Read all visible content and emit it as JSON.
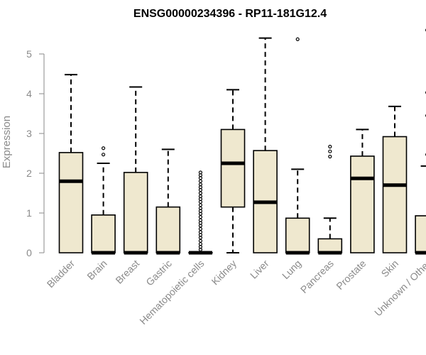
{
  "chart_data": {
    "type": "boxplot",
    "title": "ENSG00000234396 - RP11-181G12.4",
    "ylabel": "Expression",
    "xlabel": "",
    "ylim": [
      0,
      5.7
    ],
    "yticks": [
      0,
      1,
      2,
      3,
      4,
      5
    ],
    "box_fill": "#efe8cf",
    "box_stroke": "#000000",
    "categories": [
      "Bladder",
      "Brain",
      "Breast",
      "Gastric",
      "Hematopoietic cells",
      "Kidney",
      "Liver",
      "Lung",
      "Pancreas",
      "Prostate",
      "Skin",
      "Unknown / Other"
    ],
    "boxes": [
      {
        "min": 0,
        "q1": 0,
        "median": 1.8,
        "q3": 2.52,
        "max": 4.48,
        "outliers": []
      },
      {
        "min": 0,
        "q1": 0,
        "median": 0,
        "q3": 0.95,
        "max": 2.25,
        "outliers": [
          2.47,
          2.63
        ]
      },
      {
        "min": 0,
        "q1": 0,
        "median": 0,
        "q3": 2.02,
        "max": 4.17,
        "outliers": []
      },
      {
        "min": 0,
        "q1": 0,
        "median": 0,
        "q3": 1.15,
        "max": 2.6,
        "outliers": []
      },
      {
        "min": 0,
        "q1": 0,
        "median": 0,
        "q3": 0,
        "max": 0,
        "outliers": [
          0.08,
          0.15,
          0.22,
          0.3,
          0.38,
          0.45,
          0.52,
          0.6,
          0.68,
          0.75,
          0.82,
          0.9,
          0.98,
          1.05,
          1.12,
          1.2,
          1.28,
          1.35,
          1.42,
          1.5,
          1.58,
          1.65,
          1.72,
          1.8,
          1.88,
          1.95,
          2.02
        ]
      },
      {
        "min": 0,
        "q1": 1.15,
        "median": 2.25,
        "q3": 3.1,
        "max": 4.1,
        "outliers": []
      },
      {
        "min": 0,
        "q1": 0,
        "median": 1.27,
        "q3": 2.57,
        "max": 5.4,
        "outliers": []
      },
      {
        "min": 0,
        "q1": 0,
        "median": 0,
        "q3": 0.87,
        "max": 2.1,
        "outliers": [
          5.37
        ]
      },
      {
        "min": 0,
        "q1": 0,
        "median": 0,
        "q3": 0.35,
        "max": 0.87,
        "outliers": [
          2.42,
          2.55,
          2.67
        ]
      },
      {
        "min": 0,
        "q1": 0,
        "median": 1.87,
        "q3": 2.43,
        "max": 3.1,
        "outliers": []
      },
      {
        "min": 0,
        "q1": 0,
        "median": 1.7,
        "q3": 2.92,
        "max": 3.68,
        "outliers": []
      },
      {
        "min": 0,
        "q1": 0,
        "median": 0,
        "q3": 0.93,
        "max": 2.18,
        "outliers": [
          2.47,
          3.45,
          4.03,
          5.6
        ]
      }
    ]
  }
}
